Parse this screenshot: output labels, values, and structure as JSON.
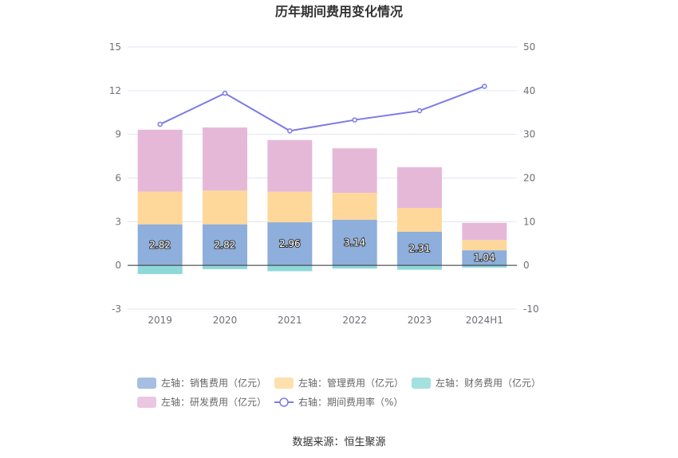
{
  "title": "历年期间费用变化情况",
  "source": "数据来源：恒生聚源",
  "chart_data": {
    "type": "bar",
    "stacked": true,
    "categories": [
      "2019",
      "2020",
      "2021",
      "2022",
      "2023",
      "2024H1"
    ],
    "left_axis": {
      "ticks": [
        "-3",
        "0",
        "3",
        "6",
        "9",
        "12",
        "15"
      ],
      "range": [
        -3,
        15
      ]
    },
    "right_axis": {
      "ticks": [
        "-10",
        "0",
        "10",
        "20",
        "30",
        "40",
        "50"
      ],
      "range": [
        -10,
        50
      ]
    },
    "series": [
      {
        "name": "左轴：销售费用（亿元）",
        "axis": "left",
        "type": "bar",
        "color": "#8eaedb",
        "values": [
          2.82,
          2.82,
          2.96,
          3.14,
          2.31,
          1.04
        ],
        "labels": [
          "2.82",
          "2.82",
          "2.96",
          "3.14",
          "2.31",
          "1.04"
        ]
      },
      {
        "name": "左轴：管理费用（亿元）",
        "axis": "left",
        "type": "bar",
        "color": "#fdd89a",
        "values": [
          2.25,
          2.32,
          2.1,
          1.84,
          1.63,
          0.7
        ]
      },
      {
        "name": "左轴：财务费用（亿元）",
        "axis": "left",
        "type": "bar",
        "color": "#8fd8d8",
        "values": [
          -0.6,
          -0.26,
          -0.4,
          -0.22,
          -0.3,
          -0.15
        ]
      },
      {
        "name": "左轴：研发费用（亿元）",
        "axis": "left",
        "type": "bar",
        "color": "#e6b8d8",
        "values": [
          4.25,
          4.33,
          3.55,
          3.06,
          2.8,
          1.18
        ]
      },
      {
        "name": "右轴：期间费用率（%）",
        "axis": "right",
        "type": "line",
        "color": "#7b7be6",
        "values": [
          32.3,
          39.4,
          30.8,
          33.3,
          35.4,
          41.0
        ]
      }
    ]
  }
}
